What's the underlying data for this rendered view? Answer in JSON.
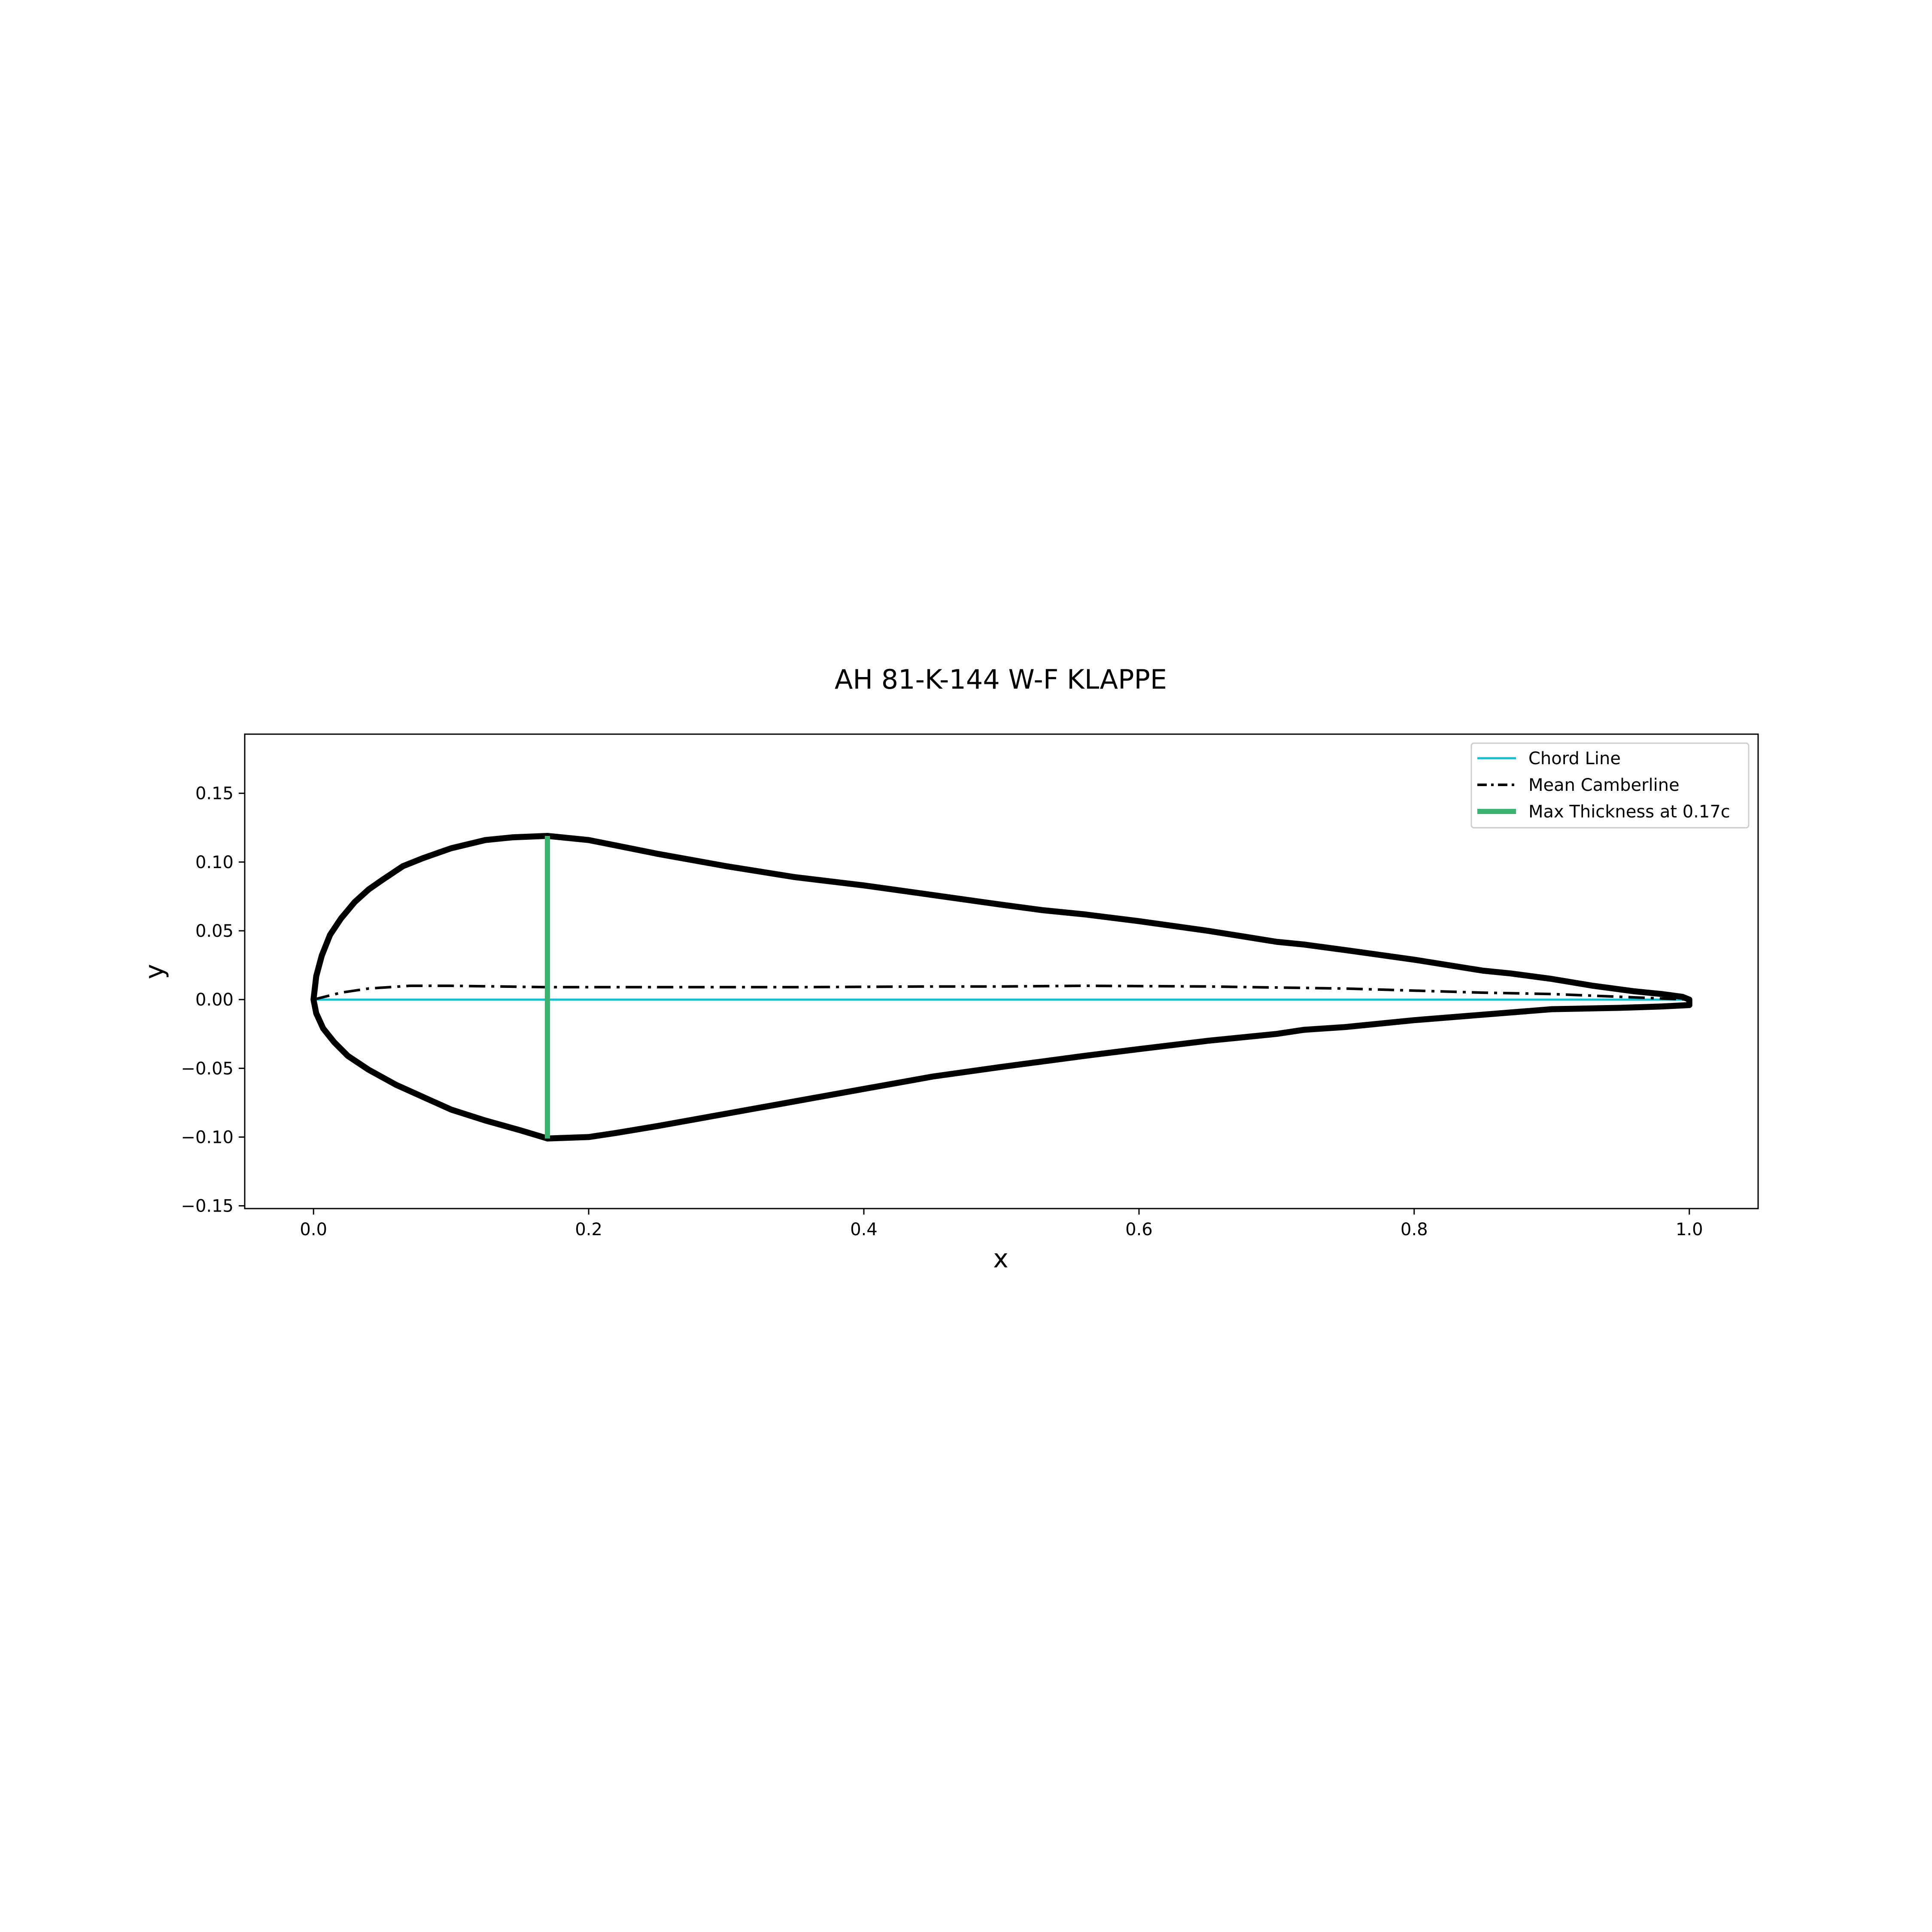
{
  "chart_data": {
    "type": "line",
    "title": "AH 81-K-144 W-F KLAPPE",
    "xlabel": "x",
    "ylabel": "y",
    "xlim": [
      -0.05,
      1.05
    ],
    "ylim": [
      -0.152,
      0.193
    ],
    "xticks": [
      0.0,
      0.2,
      0.4,
      0.6,
      0.8,
      1.0
    ],
    "xtick_labels": [
      "0.0",
      "0.2",
      "0.4",
      "0.6",
      "0.8",
      "1.0"
    ],
    "yticks": [
      -0.15,
      -0.1,
      -0.05,
      0.0,
      0.05,
      0.1,
      0.15
    ],
    "ytick_labels": [
      "−0.15",
      "−0.10",
      "−0.05",
      "0.00",
      "0.05",
      "0.10",
      "0.15"
    ],
    "grid": false,
    "legend_position": "top-right",
    "series": [
      {
        "name": "Chord Line",
        "color": "#17becf",
        "style": "solid",
        "x": [
          0.0,
          1.0
        ],
        "y": [
          0.0,
          0.0
        ]
      },
      {
        "name": "Mean Camberline",
        "color": "#000000",
        "style": "dashdot",
        "x": [
          0.0,
          0.02,
          0.04,
          0.07,
          0.1,
          0.17,
          0.25,
          0.35,
          0.45,
          0.5,
          0.56,
          0.65,
          0.75,
          0.85,
          0.9,
          0.95,
          1.0
        ],
        "y": [
          0.0,
          0.005,
          0.008,
          0.01,
          0.01,
          0.009,
          0.009,
          0.009,
          0.0095,
          0.0095,
          0.01,
          0.0095,
          0.008,
          0.005,
          0.004,
          0.002,
          0.0
        ]
      },
      {
        "name": "Max Thickness at 0.17c",
        "color": "#3cb371",
        "style": "solid",
        "x": [
          0.17,
          0.17
        ],
        "y": [
          -0.101,
          0.119
        ]
      }
    ],
    "airfoil_outline": {
      "color": "#000000",
      "upper": {
        "x": [
          1.0,
          0.995,
          0.98,
          0.96,
          0.93,
          0.9,
          0.87,
          0.85,
          0.8,
          0.75,
          0.72,
          0.7,
          0.65,
          0.6,
          0.56,
          0.53,
          0.5,
          0.45,
          0.4,
          0.35,
          0.3,
          0.25,
          0.22,
          0.2,
          0.17,
          0.145,
          0.125,
          0.1,
          0.08,
          0.065,
          0.05,
          0.04,
          0.03,
          0.02,
          0.012,
          0.006,
          0.002,
          0.0
        ],
        "y": [
          0.0,
          0.002,
          0.004,
          0.006,
          0.01,
          0.015,
          0.019,
          0.021,
          0.029,
          0.036,
          0.04,
          0.042,
          0.05,
          0.057,
          0.062,
          0.065,
          0.069,
          0.076,
          0.083,
          0.089,
          0.097,
          0.106,
          0.112,
          0.116,
          0.119,
          0.118,
          0.116,
          0.11,
          0.103,
          0.097,
          0.087,
          0.08,
          0.071,
          0.059,
          0.047,
          0.032,
          0.017,
          0.0
        ]
      },
      "lower": {
        "x": [
          0.0,
          0.002,
          0.007,
          0.015,
          0.025,
          0.04,
          0.06,
          0.08,
          0.1,
          0.125,
          0.15,
          0.17,
          0.2,
          0.22,
          0.25,
          0.3,
          0.35,
          0.4,
          0.45,
          0.5,
          0.53,
          0.56,
          0.6,
          0.65,
          0.7,
          0.72,
          0.75,
          0.8,
          0.85,
          0.9,
          0.95,
          0.98,
          1.0
        ],
        "y": [
          0.0,
          -0.01,
          -0.021,
          -0.031,
          -0.041,
          -0.051,
          -0.062,
          -0.071,
          -0.08,
          -0.088,
          -0.095,
          -0.101,
          -0.1,
          -0.097,
          -0.092,
          -0.083,
          -0.074,
          -0.065,
          -0.056,
          -0.049,
          -0.045,
          -0.041,
          -0.036,
          -0.03,
          -0.025,
          -0.022,
          -0.02,
          -0.015,
          -0.011,
          -0.007,
          -0.006,
          -0.005,
          -0.004
        ]
      }
    }
  }
}
